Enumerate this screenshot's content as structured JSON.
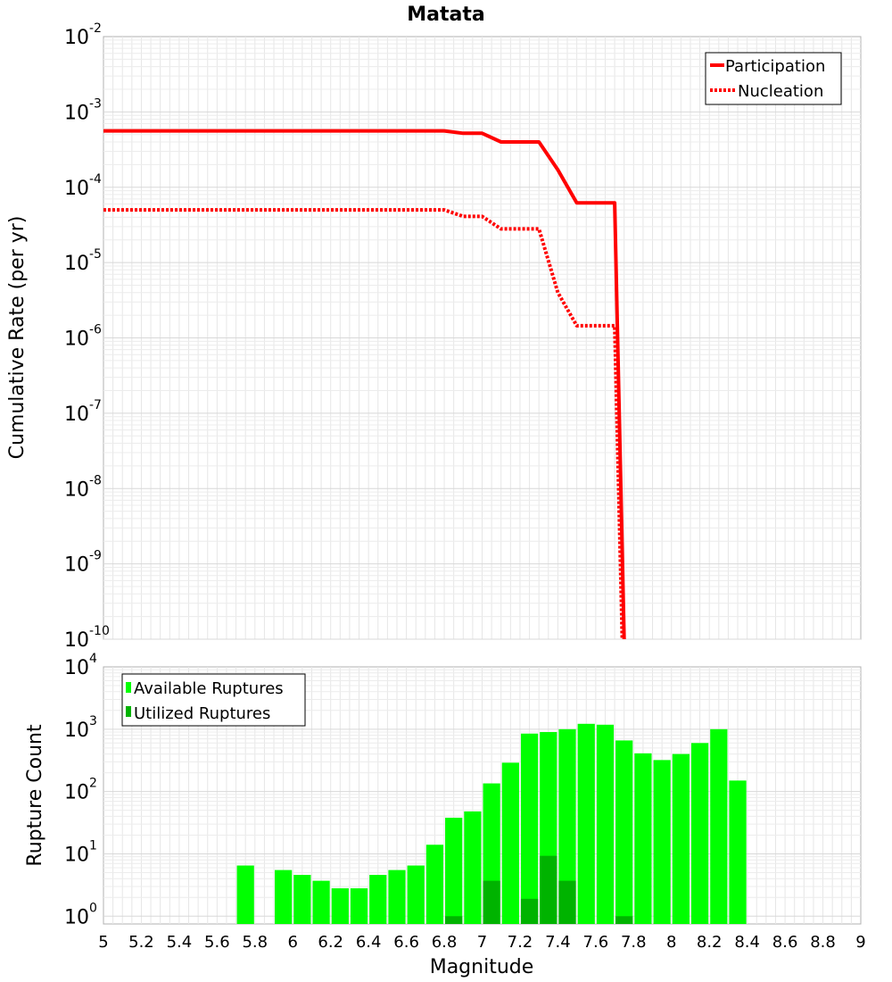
{
  "title": "Matata",
  "chart_data": [
    {
      "type": "line",
      "ylabel": "Cumulative Rate (per yr)",
      "xlim": [
        5,
        9
      ],
      "ylim": [
        1e-10,
        0.01
      ],
      "yscale": "log",
      "grid": true,
      "legend_placement": "top-right",
      "ytick_exponents": [
        "-2",
        "-3",
        "-4",
        "-5",
        "-6",
        "-7",
        "-8",
        "-9",
        "-10"
      ],
      "series": [
        {
          "name": "Participation",
          "style": "solid",
          "color": "#ff0000",
          "x": [
            5.0,
            6.8,
            6.9,
            7.0,
            7.1,
            7.2,
            7.3,
            7.4,
            7.5,
            7.6,
            7.7,
            7.75
          ],
          "y": [
            0.00056,
            0.00056,
            0.00052,
            0.00052,
            0.0004,
            0.0004,
            0.0004,
            0.00017,
            6.2e-05,
            6.2e-05,
            6.2e-05,
            1e-10
          ]
        },
        {
          "name": "Nucleation",
          "style": "dotted",
          "color": "#ff0000",
          "x": [
            5.0,
            6.8,
            6.9,
            7.0,
            7.1,
            7.2,
            7.3,
            7.4,
            7.5,
            7.6,
            7.7,
            7.74
          ],
          "y": [
            5e-05,
            5e-05,
            4.1e-05,
            4.1e-05,
            2.8e-05,
            2.8e-05,
            2.8e-05,
            4e-06,
            1.45e-06,
            1.45e-06,
            1.45e-06,
            1e-10
          ]
        }
      ]
    },
    {
      "type": "bar",
      "xlabel": "Magnitude",
      "ylabel": "Rupture Count",
      "xlim": [
        5,
        9
      ],
      "ylim": [
        0.75,
        10000
      ],
      "yscale": "log",
      "grid": true,
      "legend_placement": "top-left",
      "bar_width": 0.1,
      "xticks": [
        "5",
        "5.2",
        "5.4",
        "5.6",
        "5.8",
        "6",
        "6.2",
        "6.4",
        "6.6",
        "6.8",
        "7",
        "7.2",
        "7.4",
        "7.6",
        "7.8",
        "8",
        "8.2",
        "8.4",
        "8.6",
        "8.8",
        "9"
      ],
      "ytick_exponents": [
        "0",
        "1",
        "2",
        "3",
        "4"
      ],
      "series": [
        {
          "name": "Available Ruptures",
          "color": "#00ff00",
          "x": [
            5.75,
            5.95,
            6.05,
            6.15,
            6.25,
            6.35,
            6.45,
            6.55,
            6.65,
            6.75,
            6.85,
            6.95,
            7.05,
            7.15,
            7.25,
            7.35,
            7.45,
            7.55,
            7.65,
            7.75,
            7.85,
            7.95,
            8.05,
            8.15,
            8.25,
            8.35
          ],
          "values": [
            6.5,
            5.5,
            4.6,
            3.7,
            2.8,
            2.8,
            4.6,
            5.5,
            6.5,
            14,
            38,
            48,
            135,
            290,
            850,
            900,
            1000,
            1220,
            1180,
            660,
            410,
            320,
            400,
            600,
            1000,
            150
          ]
        },
        {
          "name": "Utilized Ruptures",
          "color": "#00b300",
          "x": [
            6.85,
            7.05,
            7.25,
            7.35,
            7.45,
            7.75
          ],
          "values": [
            1,
            3.7,
            1.9,
            9.3,
            3.7,
            1
          ]
        }
      ]
    }
  ]
}
